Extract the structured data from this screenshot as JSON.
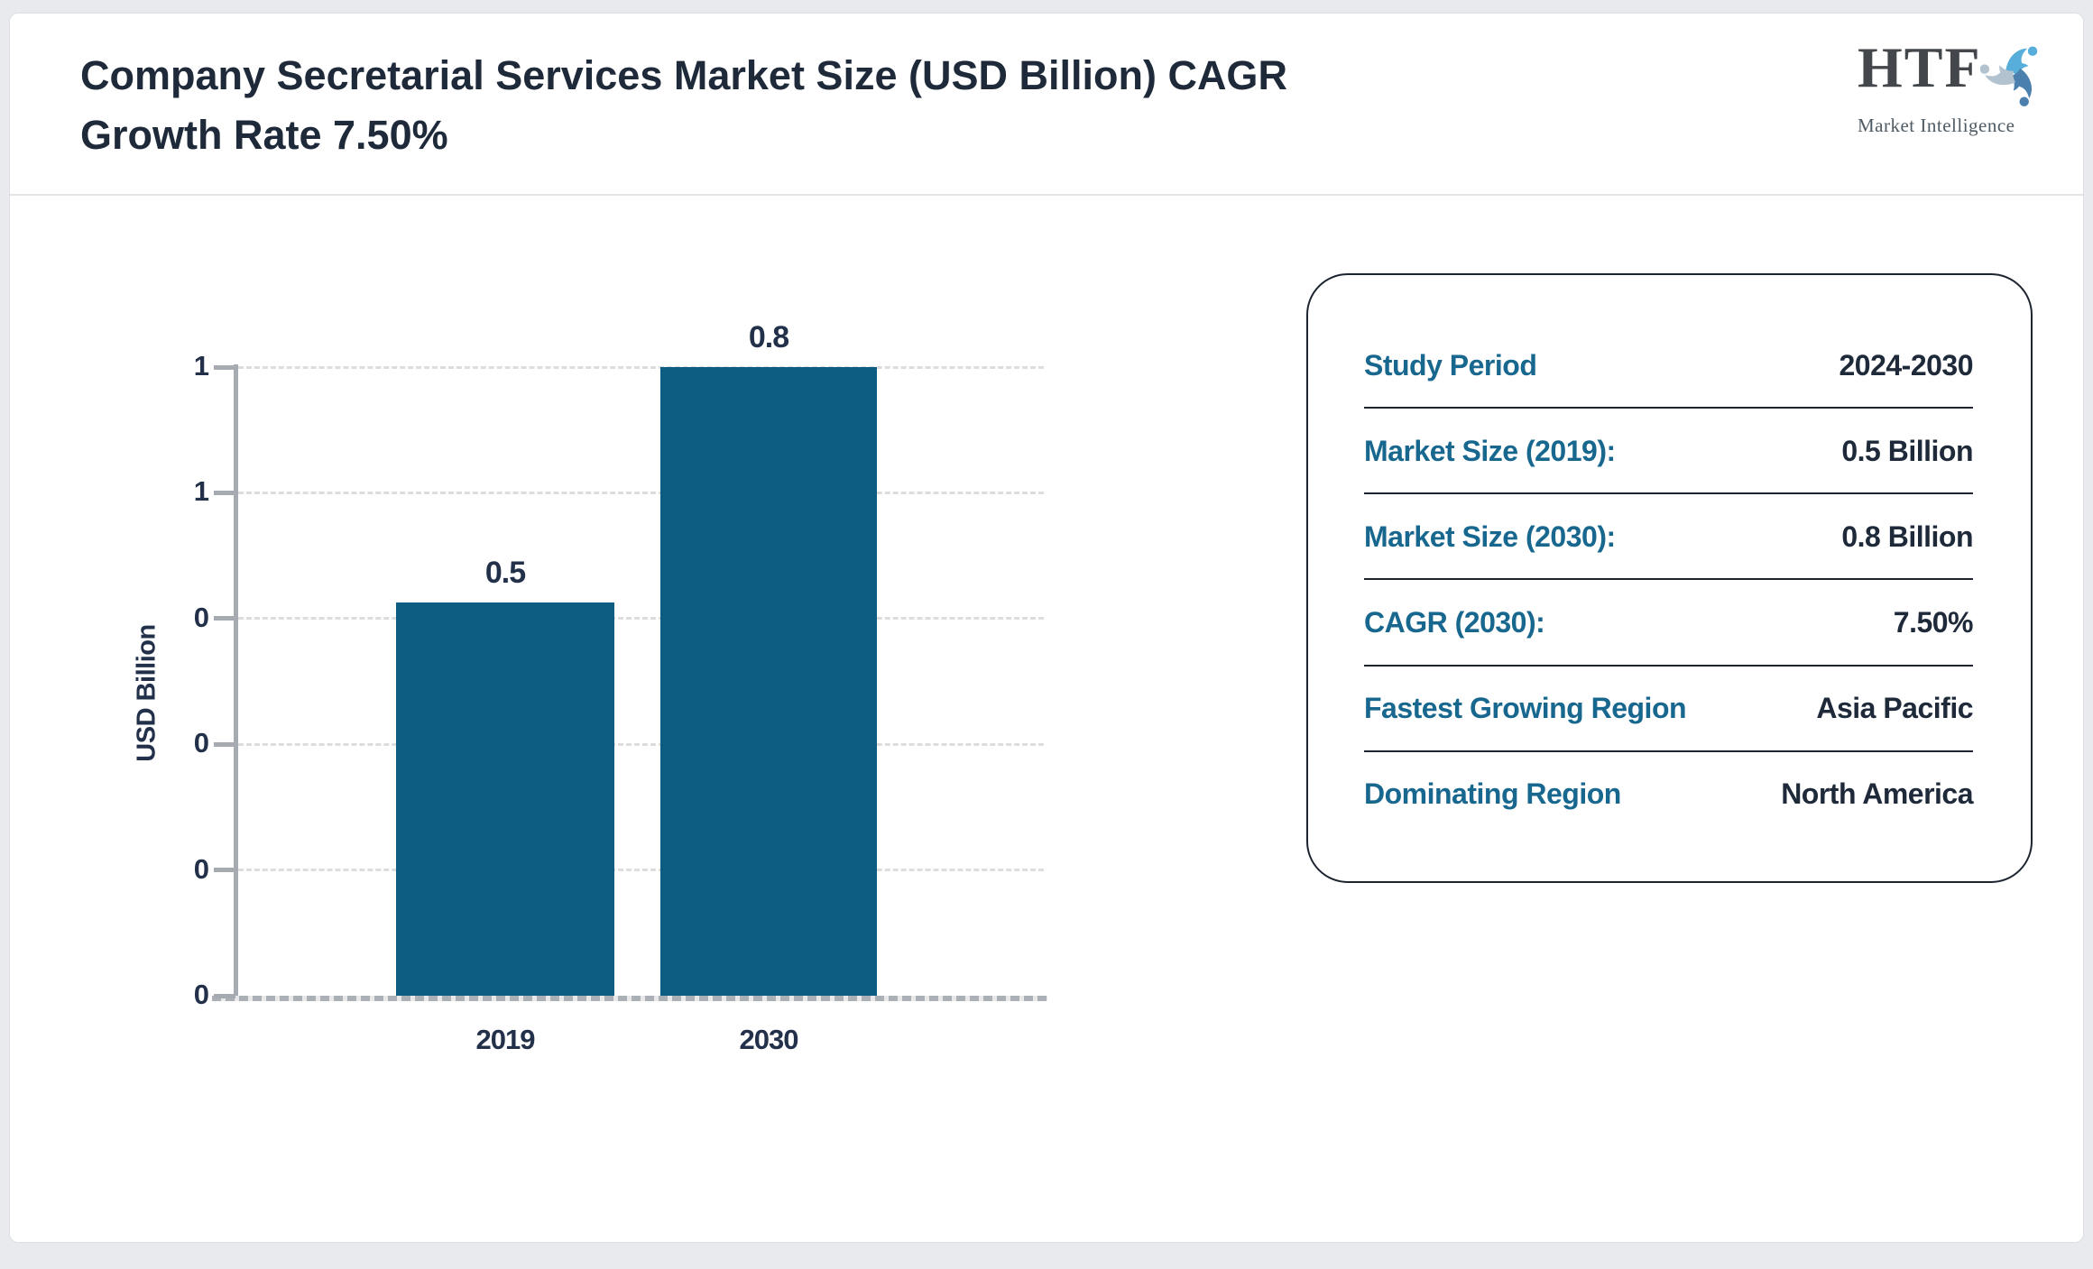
{
  "header": {
    "title": "Company Secretarial Services Market Size (USD Billion) CAGR Growth Rate 7.50%"
  },
  "logo": {
    "text": "HTF",
    "subtext": "Market Intelligence",
    "icon": "three-figures-swirl-icon",
    "colors": {
      "light_blue": "#57aeda",
      "steel_blue": "#4a7fae",
      "pale_gray_blue": "#b3c2cf"
    }
  },
  "chart_data": {
    "type": "bar",
    "title": "Company Secretarial Services Market Size (USD Billion) CAGR Growth Rate 7.50%",
    "categories": [
      "2019",
      "2030"
    ],
    "values": [
      0.5,
      0.8
    ],
    "bar_value_labels": [
      "0.5",
      "0.8"
    ],
    "xlabel": "",
    "ylabel": "USD Billion",
    "ylim": [
      0,
      0.8
    ],
    "y_tick_values": [
      0,
      0.16,
      0.32,
      0.48,
      0.64,
      0.8
    ],
    "y_tick_labels_bottom_to_top": [
      "0",
      "0",
      "0",
      "0",
      "1",
      "1"
    ],
    "grid": "horizontal-dashed",
    "legend": "none",
    "bar_color": "#0d5c82"
  },
  "summary_card": {
    "rows": [
      {
        "id": "study-period",
        "label": "Study Period",
        "value": "2024-2030"
      },
      {
        "id": "market-size-2019",
        "label": "Market Size (2019):",
        "value": "0.5 Billion"
      },
      {
        "id": "market-size-2030",
        "label": "Market Size (2030):",
        "value": "0.8 Billion"
      },
      {
        "id": "cagr-2030",
        "label": "CAGR (2030):",
        "value": "7.50%"
      },
      {
        "id": "fastest-growing-region",
        "label": "Fastest Growing Region",
        "value": "Asia Pacific"
      },
      {
        "id": "dominating-region",
        "label": "Dominating Region",
        "value": "North America"
      }
    ],
    "label_color": "#18678f",
    "value_color": "#1e2a3a"
  }
}
